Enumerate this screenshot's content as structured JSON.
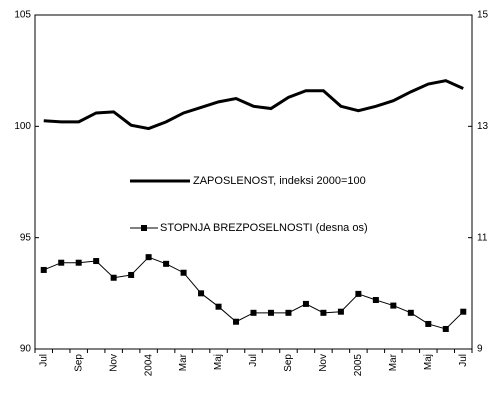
{
  "chart_data": {
    "type": "line",
    "categories": [
      "Jul",
      null,
      "Sep",
      null,
      "Nov",
      null,
      "2004",
      null,
      "Mar",
      null,
      "Maj",
      null,
      "Jul",
      null,
      "Sep",
      null,
      "Nov",
      null,
      "2005",
      null,
      "Mar",
      null,
      "Maj",
      null,
      "Jul"
    ],
    "series": [
      {
        "name": "ZAPOSLENOST, indeksi 2000=100",
        "color": "#000000",
        "marker": "none",
        "values": [
          100.25,
          100.2,
          100.2,
          100.6,
          100.65,
          100.05,
          99.9,
          100.2,
          100.6,
          100.85,
          101.1,
          101.25,
          100.9,
          100.8,
          101.3,
          101.6,
          101.6,
          100.9,
          100.7,
          100.9,
          101.15,
          101.55,
          101.9,
          102.05,
          101.7
        ]
      },
      {
        "name": "STOPNJA BREZPOSELNOSTI (desna os)",
        "color": "#000000",
        "marker": "square",
        "axis": "y2",
        "values": [
          10.42,
          10.55,
          10.55,
          10.58,
          10.28,
          10.33,
          10.65,
          10.53,
          10.37,
          10.0,
          9.76,
          9.49,
          9.65,
          9.65,
          9.65,
          9.81,
          9.65,
          9.67,
          9.99,
          9.88,
          9.78,
          9.65,
          9.45,
          9.36,
          9.67
        ]
      }
    ],
    "ylim": [
      90,
      105
    ],
    "yticks": [
      90,
      95,
      100,
      105
    ],
    "y2lim": [
      9,
      15
    ],
    "y2ticks": [
      9,
      11,
      13,
      15
    ],
    "grid": false
  }
}
